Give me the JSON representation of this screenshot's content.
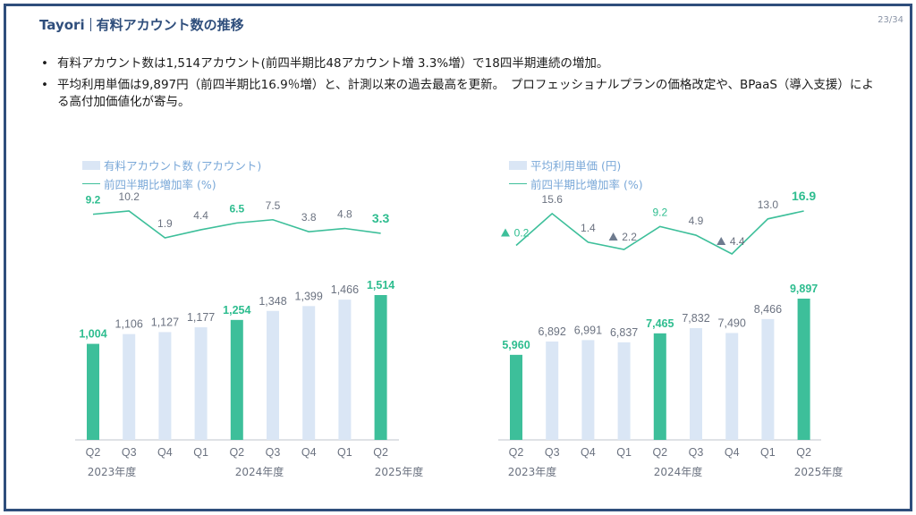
{
  "header": {
    "brand": "Tayori",
    "title": "有料アカウント数の推移",
    "page": "23/34"
  },
  "bullets": [
    "有料アカウント数は1,514アカウント(前四半期比48アカウント増 3.3%増）で18四半期連続の増加。",
    "平均利用単価は9,897円（前四半期比16.9％増）と、計測以来の過去最高を更新。　プロフェッショナルプランの価格改定や、BPaaS（導入支援）による高付加価値化が寄与。"
  ],
  "colors": {
    "highlight": "#3dbf9a",
    "bar": "#dae6f5",
    "line": "#3dbf9a",
    "value_text": "#6b7280",
    "highlight_text": "#2ebd8f",
    "frame": "#2f4e7c"
  },
  "chart_data": [
    {
      "type": "bar",
      "legend": [
        "有料アカウント数 (アカウント)",
        "前四半期比増加率 (%)"
      ],
      "categories": [
        "Q2",
        "Q3",
        "Q4",
        "Q1",
        "Q2",
        "Q3",
        "Q4",
        "Q1",
        "Q2"
      ],
      "year_labels": [
        "2023年度",
        "2024年度",
        "2025年度"
      ],
      "values": [
        1004,
        1106,
        1127,
        1177,
        1254,
        1348,
        1399,
        1466,
        1514
      ],
      "value_labels": [
        "1,004",
        "1,106",
        "1,127",
        "1,177",
        "1,254",
        "1,348",
        "1,399",
        "1,466",
        "1,514"
      ],
      "highlight": [
        true,
        false,
        false,
        false,
        true,
        false,
        false,
        false,
        true
      ],
      "ylim": [
        0,
        1750
      ],
      "growth_rate": {
        "values": [
          9.2,
          10.2,
          1.9,
          4.4,
          6.5,
          7.5,
          3.8,
          4.8,
          3.3
        ],
        "labels": [
          "9.2",
          "10.2",
          "1.9",
          "4.4",
          "6.5",
          "7.5",
          "3.8",
          "4.8",
          "3.3"
        ],
        "negative": [
          false,
          false,
          false,
          false,
          false,
          false,
          false,
          false,
          false
        ]
      }
    },
    {
      "type": "bar",
      "legend": [
        "平均利用単価 (円)",
        "前四半期比増加率 (%)"
      ],
      "categories": [
        "Q2",
        "Q3",
        "Q4",
        "Q1",
        "Q2",
        "Q3",
        "Q4",
        "Q1",
        "Q2"
      ],
      "year_labels": [
        "2023年度",
        "2024年度",
        "2025年度"
      ],
      "values": [
        5960,
        6892,
        6991,
        6837,
        7465,
        7832,
        7490,
        8466,
        9897
      ],
      "value_labels": [
        "5,960",
        "6,892",
        "6,991",
        "6,837",
        "7,465",
        "7,832",
        "7,490",
        "8,466",
        "9,897"
      ],
      "highlight": [
        true,
        false,
        false,
        false,
        true,
        false,
        false,
        false,
        true
      ],
      "ylim": [
        0,
        11000
      ],
      "growth_rate": {
        "values": [
          -0.2,
          15.6,
          1.4,
          -2.2,
          9.2,
          4.9,
          -4.4,
          13.0,
          16.9
        ],
        "labels": [
          "0.2",
          "15.6",
          "1.4",
          "2.2",
          "9.2",
          "4.9",
          "4.4",
          "13.0",
          "16.9"
        ],
        "negative": [
          true,
          false,
          false,
          true,
          false,
          false,
          true,
          false,
          false
        ]
      }
    }
  ]
}
